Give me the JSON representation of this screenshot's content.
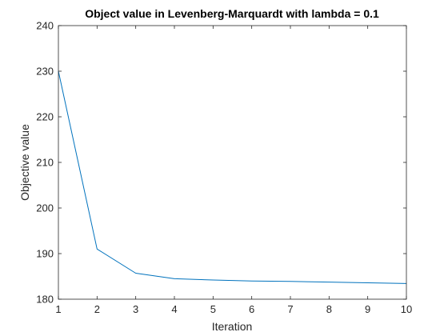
{
  "chart_data": {
    "type": "line",
    "title": "Object value in Levenberg-Marquardt with lambda = 0.1",
    "xlabel": "Iteration",
    "ylabel": "Objective value",
    "xlim": [
      1,
      10
    ],
    "ylim": [
      180,
      240
    ],
    "x_ticks": [
      "1",
      "2",
      "3",
      "4",
      "5",
      "6",
      "7",
      "8",
      "9",
      "10"
    ],
    "y_ticks": [
      "180",
      "190",
      "200",
      "210",
      "220",
      "230",
      "240"
    ],
    "grid": false,
    "series": [
      {
        "x": [
          1,
          2,
          3,
          4,
          5,
          6,
          7,
          8,
          9,
          10
        ],
        "values": [
          230.0,
          191.0,
          185.7,
          184.5,
          184.2,
          184.0,
          183.9,
          183.75,
          183.6,
          183.45
        ],
        "color": "#0072BD"
      }
    ]
  }
}
